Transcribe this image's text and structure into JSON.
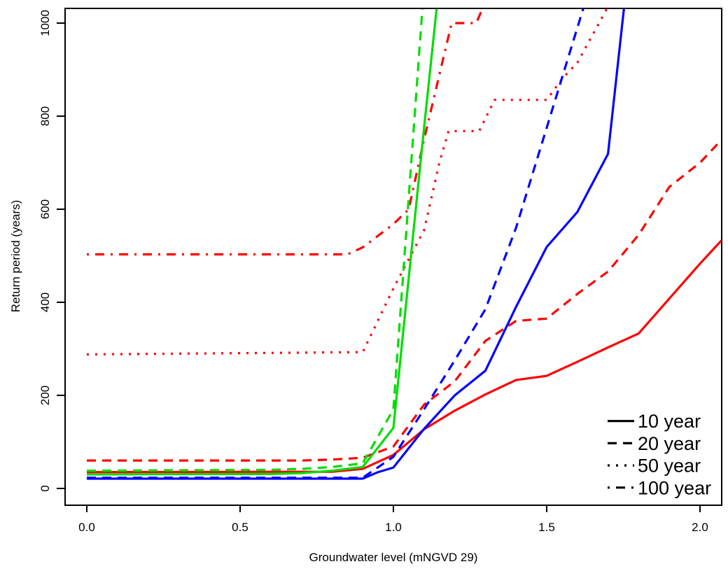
{
  "chart_data": {
    "type": "line",
    "title": "",
    "xlabel": "Groundwater level (mNGVD 29)",
    "ylabel": "Return period (years)",
    "xlim": [
      -0.07,
      2.07
    ],
    "ylim": [
      -36,
      1036
    ],
    "grid": false,
    "x_ticks": [
      0.0,
      0.5,
      1.0,
      1.5,
      2.0
    ],
    "x_tick_labels": [
      "0.0",
      "0.5",
      "1.0",
      "1.5",
      "2.0"
    ],
    "y_ticks": [
      0,
      200,
      400,
      600,
      800,
      1000
    ],
    "y_tick_labels": [
      "0",
      "200",
      "400",
      "600",
      "800",
      "1000"
    ],
    "legend": {
      "position": "bottom-right",
      "sample_color": "#000000",
      "entries": [
        {
          "label": "10 year",
          "style": "solid"
        },
        {
          "label": "20 year",
          "style": "dashed"
        },
        {
          "label": "50 year",
          "style": "dotted"
        },
        {
          "label": "100 year",
          "style": "dashdot"
        }
      ]
    },
    "series_colors": {
      "red": "#FF0000",
      "green": "#00DD00",
      "blue": "#0000FF"
    },
    "series": [
      {
        "name": "red-10-year",
        "legend_label": "10 year",
        "color": "#FF0000",
        "style": "solid",
        "points": [
          [
            0,
            35
          ],
          [
            0.8,
            36
          ],
          [
            0.9,
            42
          ],
          [
            0.95,
            57
          ],
          [
            1.0,
            72
          ],
          [
            1.1,
            127
          ],
          [
            1.2,
            167
          ],
          [
            1.3,
            202
          ],
          [
            1.4,
            233
          ],
          [
            1.5,
            242
          ],
          [
            1.6,
            272
          ],
          [
            1.7,
            303
          ],
          [
            1.8,
            333
          ],
          [
            1.9,
            408
          ],
          [
            2.0,
            483
          ],
          [
            2.07,
            533
          ]
        ]
      },
      {
        "name": "red-20-year",
        "legend_label": "20 year",
        "color": "#FF0000",
        "style": "dashed",
        "points": [
          [
            0,
            60
          ],
          [
            0.7,
            60
          ],
          [
            0.8,
            62
          ],
          [
            0.9,
            66
          ],
          [
            1.0,
            90
          ],
          [
            1.1,
            180
          ],
          [
            1.2,
            230
          ],
          [
            1.3,
            317
          ],
          [
            1.4,
            360
          ],
          [
            1.5,
            365
          ],
          [
            1.6,
            418
          ],
          [
            1.7,
            466
          ],
          [
            1.8,
            545
          ],
          [
            1.9,
            648
          ],
          [
            2.0,
            700
          ],
          [
            2.07,
            749
          ]
        ]
      },
      {
        "name": "red-50-year",
        "legend_label": "50 year",
        "color": "#FF0000",
        "style": "dotted",
        "points": [
          [
            0,
            288
          ],
          [
            0.9,
            293
          ],
          [
            1.0,
            430
          ],
          [
            1.1,
            555
          ],
          [
            1.15,
            700
          ],
          [
            1.18,
            768
          ],
          [
            1.28,
            768
          ],
          [
            1.33,
            835
          ],
          [
            1.5,
            835
          ],
          [
            1.55,
            880
          ],
          [
            1.6,
            915
          ],
          [
            1.65,
            975
          ],
          [
            1.72,
            1060
          ]
        ]
      },
      {
        "name": "red-100-year",
        "legend_label": "100 year",
        "color": "#FF0000",
        "style": "dashdot",
        "points": [
          [
            0,
            503
          ],
          [
            0.85,
            503
          ],
          [
            0.9,
            518
          ],
          [
            1.0,
            568
          ],
          [
            1.05,
            600
          ],
          [
            1.1,
            750
          ],
          [
            1.19,
            1000
          ],
          [
            1.27,
            1000
          ],
          [
            1.32,
            1075
          ]
        ]
      },
      {
        "name": "green-10-year",
        "legend_label": "10 year",
        "color": "#00DD00",
        "style": "solid",
        "points": [
          [
            0,
            30
          ],
          [
            0.6,
            31
          ],
          [
            0.7,
            33
          ],
          [
            0.8,
            38
          ],
          [
            0.9,
            46
          ],
          [
            1.0,
            130
          ],
          [
            1.1,
            775
          ],
          [
            1.16,
            1150
          ]
        ]
      },
      {
        "name": "green-20-year",
        "legend_label": "20 year",
        "color": "#00DD00",
        "style": "dashed",
        "points": [
          [
            0,
            38
          ],
          [
            0.6,
            40
          ],
          [
            0.7,
            42
          ],
          [
            0.8,
            46
          ],
          [
            0.9,
            54
          ],
          [
            1.0,
            170
          ],
          [
            1.1,
            1080
          ]
        ]
      },
      {
        "name": "blue-10-year",
        "legend_label": "10 year",
        "color": "#0000FF",
        "style": "solid",
        "points": [
          [
            0,
            21
          ],
          [
            0.9,
            21
          ],
          [
            0.95,
            35
          ],
          [
            1.0,
            45
          ],
          [
            1.1,
            128
          ],
          [
            1.2,
            200
          ],
          [
            1.3,
            253
          ],
          [
            1.4,
            390
          ],
          [
            1.5,
            519
          ],
          [
            1.6,
            594
          ],
          [
            1.7,
            719
          ],
          [
            1.76,
            1080
          ]
        ]
      },
      {
        "name": "blue-20-year",
        "legend_label": "20 year",
        "color": "#0000FF",
        "style": "dashed",
        "points": [
          [
            0,
            23
          ],
          [
            0.9,
            23
          ],
          [
            1.0,
            68
          ],
          [
            1.1,
            170
          ],
          [
            1.2,
            275
          ],
          [
            1.3,
            385
          ],
          [
            1.4,
            560
          ],
          [
            1.5,
            775
          ],
          [
            1.6,
            990
          ],
          [
            1.64,
            1075
          ]
        ]
      }
    ]
  }
}
